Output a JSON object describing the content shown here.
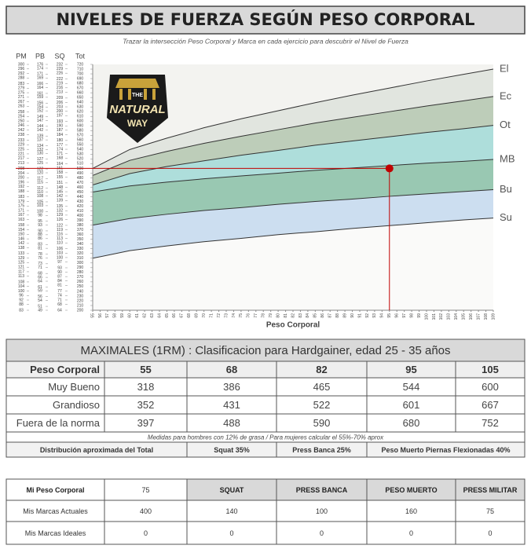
{
  "title": "NIVELES DE FUERZA SEGÚN PESO CORPORAL",
  "subtitle": "Trazar la intersección Peso Corporal y Marca en cada ejercicio para descubrir el Nivel de Fuerza",
  "logo": {
    "lines": [
      "THE",
      "NATURAL",
      "WAY"
    ]
  },
  "chart_data": {
    "type": "line",
    "x": [
      55,
      60,
      65,
      70,
      75,
      80,
      85,
      90,
      95,
      100,
      105,
      109
    ],
    "xlabel": "Peso Corporal",
    "xlim": [
      55,
      109
    ],
    "xticks": [
      55,
      56,
      57,
      58,
      59,
      60,
      61,
      62,
      63,
      64,
      65,
      66,
      67,
      68,
      69,
      70,
      71,
      72,
      73,
      74,
      75,
      76,
      77,
      78,
      79,
      80,
      81,
      82,
      83,
      84,
      85,
      86,
      87,
      88,
      89,
      90,
      91,
      92,
      93,
      94,
      95,
      96,
      97,
      98,
      99,
      100,
      101,
      102,
      103,
      104,
      105,
      106,
      107,
      108,
      109
    ],
    "ylabel": "Tot",
    "ylim": [
      200,
      720
    ],
    "yticks": [
      720,
      710,
      700,
      690,
      680,
      670,
      660,
      650,
      640,
      630,
      620,
      610,
      600,
      590,
      580,
      570,
      560,
      550,
      540,
      530,
      520,
      510,
      500,
      490,
      480,
      470,
      460,
      450,
      440,
      430,
      420,
      410,
      400,
      390,
      380,
      370,
      360,
      350,
      340,
      330,
      320,
      310,
      300,
      290,
      280,
      270,
      260,
      250,
      240,
      230,
      220,
      210,
      200
    ],
    "extra_axes": [
      {
        "label": "PM",
        "ylim": [
          83,
          300
        ],
        "ticks": [
          300,
          296,
          292,
          288,
          283,
          279,
          275,
          271,
          267,
          263,
          258,
          254,
          250,
          246,
          242,
          238,
          233,
          229,
          225,
          221,
          217,
          213,
          208,
          204,
          200,
          196,
          192,
          188,
          183,
          179,
          175,
          171,
          167,
          163,
          158,
          154,
          150,
          146,
          142,
          138,
          133,
          129,
          125,
          121,
          117,
          113,
          108,
          104,
          100,
          96,
          92,
          88,
          83
        ]
      },
      {
        "label": "PB",
        "ylim": [
          49,
          176
        ],
        "ticks": [
          176,
          174,
          171,
          169,
          166,
          164,
          161,
          159,
          156,
          154,
          152,
          149,
          147,
          144,
          142,
          139,
          137,
          134,
          132,
          130,
          127,
          125,
          122,
          120,
          117,
          115,
          112,
          110,
          108,
          105,
          103,
          100,
          98,
          95,
          93,
          90,
          88,
          86,
          83,
          81,
          78,
          76,
          73,
          71,
          68,
          66,
          64,
          61,
          59,
          56,
          54,
          51,
          49
        ]
      },
      {
        "label": "SQ",
        "ylim": [
          64,
          232
        ],
        "ticks": [
          232,
          229,
          226,
          222,
          219,
          216,
          213,
          209,
          206,
          203,
          200,
          197,
          193,
          190,
          187,
          184,
          180,
          177,
          174,
          171,
          168,
          164,
          161,
          158,
          155,
          151,
          148,
          145,
          142,
          139,
          135,
          132,
          129,
          126,
          122,
          119,
          116,
          113,
          110,
          106,
          103,
          100,
          97,
          93,
          90,
          87,
          84,
          81,
          77,
          74,
          71,
          68,
          64
        ]
      }
    ],
    "line_color": "#333333",
    "series": [
      {
        "name": "El",
        "color": "#dfe3dd",
        "values": [
          500,
          540,
          564,
          586,
          605,
          622,
          639,
          655,
          670,
          685,
          699,
          710
        ]
      },
      {
        "name": "Ec",
        "color": "#b7c9b3",
        "values": [
          485,
          517,
          536,
          553,
          568,
          582,
          596,
          608,
          620,
          632,
          643,
          652
        ]
      },
      {
        "name": "Ot",
        "color": "#a6dbd8",
        "values": [
          465,
          489,
          504,
          516,
          528,
          538,
          549,
          558,
          567,
          576,
          584,
          591
        ]
      },
      {
        "name": "MB",
        "color": "#8fc3ab",
        "values": [
          450,
          463,
          471,
          478,
          484,
          490,
          496,
          501,
          506,
          511,
          515,
          519
        ]
      },
      {
        "name": "Bu",
        "color": "#c8dcef",
        "values": [
          380,
          394,
          403,
          411,
          417,
          424,
          430,
          435,
          441,
          446,
          451,
          455
        ]
      },
      {
        "name": "Su",
        "color": "#ffffff",
        "values": [
          310,
          326,
          336,
          345,
          352,
          360,
          366,
          373,
          379,
          385,
          391,
          395
        ]
      }
    ],
    "marker": {
      "x": 95,
      "y": 500,
      "color": "#c00000"
    }
  },
  "table": {
    "header": "MAXIMALES (1RM) :  Clasificacion para Hardgainer, edad 25 - 35 años",
    "rows": [
      [
        "Peso Corporal",
        55,
        68,
        82,
        95,
        105
      ],
      [
        "Muy Bueno",
        318,
        386,
        465,
        544,
        600
      ],
      [
        "Grandioso",
        352,
        431,
        522,
        601,
        667
      ],
      [
        "Fuera de la norma",
        397,
        488,
        590,
        680,
        752
      ]
    ],
    "note": "Medidas para hombres con 12% de grasa / Para mujeres calcular el 55%-70% aprox",
    "distribution": [
      "Distribución aproximada del Total",
      "Squat 35%",
      "Press Banca 25%",
      "Peso Muerto Piernas Flexionadas 40%"
    ]
  },
  "my_table": {
    "rows": [
      [
        "Mi Peso Corporal",
        75,
        "SQUAT",
        "PRESS BANCA",
        "PESO MUERTO",
        "PRESS MILITAR"
      ],
      [
        "Mis Marcas Actuales",
        400,
        140,
        100,
        160,
        75
      ],
      [
        "Mis Marcas Ideales",
        0,
        0,
        0,
        0,
        0
      ]
    ]
  }
}
